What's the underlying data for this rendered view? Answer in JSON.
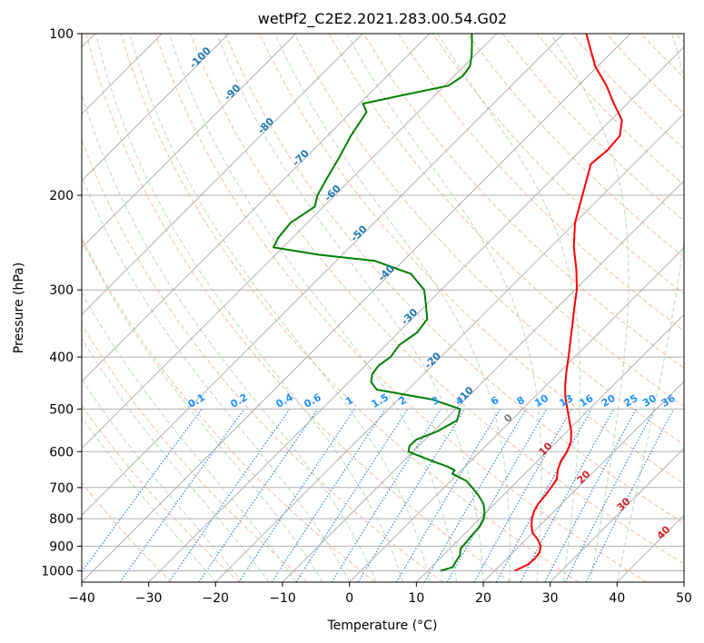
{
  "chart_data": {
    "type": "line",
    "title": "wetPf2_C2E2.2021.283.00.54.G02",
    "xlabel": "Temperature (°C)",
    "ylabel": "Pressure (hPa)",
    "xlim": [
      -40,
      50
    ],
    "ylim": [
      1050,
      100
    ],
    "y_scale": "log",
    "x_ticks": [
      "−40",
      "−30",
      "−20",
      "−10",
      "0",
      "10",
      "20",
      "30",
      "40",
      "50"
    ],
    "y_ticks": [
      "100",
      "200",
      "300",
      "400",
      "500",
      "600",
      "700",
      "800",
      "900",
      "1000"
    ],
    "grid": true,
    "series": [
      {
        "kind": "temperature",
        "color": "#ff0000",
        "points": [
          [
            1000,
            23.0
          ],
          [
            975,
            24.0
          ],
          [
            950,
            24.2
          ],
          [
            925,
            24.0
          ],
          [
            900,
            23.2
          ],
          [
            875,
            21.8
          ],
          [
            850,
            20.0
          ],
          [
            825,
            18.8
          ],
          [
            800,
            17.8
          ],
          [
            775,
            17.0
          ],
          [
            750,
            16.5
          ],
          [
            725,
            16.3
          ],
          [
            700,
            16.0
          ],
          [
            675,
            15.6
          ],
          [
            650,
            14.4
          ],
          [
            625,
            13.5
          ],
          [
            600,
            13.0
          ],
          [
            575,
            12.1
          ],
          [
            550,
            10.6
          ],
          [
            525,
            8.7
          ],
          [
            500,
            6.7
          ],
          [
            475,
            4.6
          ],
          [
            450,
            2.7
          ],
          [
            425,
            0.9
          ],
          [
            400,
            -0.9
          ],
          [
            375,
            -2.9
          ],
          [
            350,
            -5.0
          ],
          [
            325,
            -7.3
          ],
          [
            300,
            -9.7
          ],
          [
            275,
            -12.8
          ],
          [
            250,
            -16.5
          ],
          [
            225,
            -20.0
          ],
          [
            200,
            -23.0
          ],
          [
            175,
            -26.4
          ],
          [
            165,
            -26.0
          ],
          [
            155,
            -26.3
          ],
          [
            145,
            -28.3
          ],
          [
            135,
            -32.0
          ],
          [
            125,
            -35.8
          ],
          [
            115,
            -40.4
          ],
          [
            100,
            -46.6
          ]
        ]
      },
      {
        "kind": "dewpoint",
        "color": "#008000",
        "points": [
          [
            1000,
            11.9
          ],
          [
            985,
            13.2
          ],
          [
            960,
            12.8
          ],
          [
            935,
            12.5
          ],
          [
            910,
            11.6
          ],
          [
            885,
            11.5
          ],
          [
            860,
            11.3
          ],
          [
            830,
            11.2
          ],
          [
            800,
            10.6
          ],
          [
            775,
            9.6
          ],
          [
            750,
            8.3
          ],
          [
            725,
            6.4
          ],
          [
            700,
            4.2
          ],
          [
            680,
            2.3
          ],
          [
            660,
            -0.8
          ],
          [
            650,
            -1.0
          ],
          [
            640,
            -2.6
          ],
          [
            625,
            -5.7
          ],
          [
            600,
            -10.7
          ],
          [
            585,
            -11.4
          ],
          [
            570,
            -11.3
          ],
          [
            550,
            -9.4
          ],
          [
            525,
            -8.1
          ],
          [
            500,
            -9.3
          ],
          [
            480,
            -14.9
          ],
          [
            460,
            -24.7
          ],
          [
            445,
            -26.7
          ],
          [
            430,
            -27.7
          ],
          [
            415,
            -28.0
          ],
          [
            400,
            -27.5
          ],
          [
            380,
            -28.0
          ],
          [
            360,
            -27.2
          ],
          [
            340,
            -27.7
          ],
          [
            320,
            -30.0
          ],
          [
            300,
            -32.5
          ],
          [
            280,
            -36.9
          ],
          [
            265,
            -44.2
          ],
          [
            258,
            -53.5
          ],
          [
            250,
            -61.4
          ],
          [
            240,
            -62.1
          ],
          [
            225,
            -62.5
          ],
          [
            210,
            -61.3
          ],
          [
            200,
            -62.6
          ],
          [
            185,
            -63.8
          ],
          [
            170,
            -65.0
          ],
          [
            155,
            -66.5
          ],
          [
            140,
            -67.7
          ],
          [
            135,
            -69.5
          ],
          [
            130,
            -64.6
          ],
          [
            125,
            -59.4
          ],
          [
            120,
            -58.7
          ],
          [
            115,
            -59.1
          ],
          [
            110,
            -60.4
          ],
          [
            104,
            -62.3
          ],
          [
            100,
            -63.7
          ]
        ]
      }
    ],
    "dry_adiabat_labels": [
      "-100",
      "-90",
      "-80",
      "-70",
      "-60",
      "-50",
      "-40",
      "-30",
      "-20",
      "-10"
    ],
    "moist_adiabat_labels": [
      "0",
      "10",
      "20",
      "30",
      "40"
    ],
    "mixing_ratio_labels": [
      "0.1",
      "0.2",
      "0.4",
      "0.6",
      "1",
      "1.5",
      "2",
      "3",
      "4",
      "6",
      "8",
      "10",
      "13",
      "16",
      "20",
      "25",
      "30",
      "36"
    ],
    "colors": {
      "temperature": "#ff0000",
      "dewpoint": "#008000",
      "isotherm": "#b0b0b0",
      "dry_adiabat": "#f4a582",
      "moist_adiabat": "#a6d3a0",
      "mixing_ratio": "#1f77e4",
      "dry_adiabat_label": "#1f77b4",
      "moist_adiabat_label": "#d62728",
      "mixing_ratio_label": "#1e90ff",
      "zero_adiabat_label": "#808080"
    }
  }
}
